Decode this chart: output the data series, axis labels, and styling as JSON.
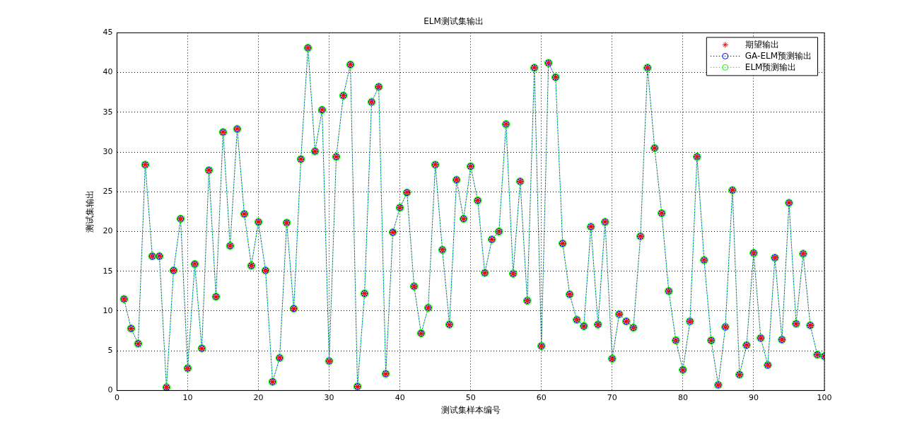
{
  "chart_data": {
    "type": "line",
    "title": "ELM测试集输出",
    "xlabel": "测试集样本编号",
    "ylabel": "测试集输出",
    "x": [
      1,
      2,
      3,
      4,
      5,
      6,
      7,
      8,
      9,
      10,
      11,
      12,
      13,
      14,
      15,
      16,
      17,
      18,
      19,
      20,
      21,
      22,
      23,
      24,
      25,
      26,
      27,
      28,
      29,
      30,
      31,
      32,
      33,
      34,
      35,
      36,
      37,
      38,
      39,
      40,
      41,
      42,
      43,
      44,
      45,
      46,
      47,
      48,
      49,
      50,
      51,
      52,
      53,
      54,
      55,
      56,
      57,
      58,
      59,
      60,
      61,
      62,
      63,
      64,
      65,
      66,
      67,
      68,
      69,
      70,
      71,
      72,
      73,
      74,
      75,
      76,
      77,
      78,
      79,
      80,
      81,
      82,
      83,
      84,
      85,
      86,
      87,
      88,
      89,
      90,
      91,
      92,
      93,
      94,
      95,
      96,
      97,
      98,
      99,
      100
    ],
    "xlim": [
      0,
      100
    ],
    "xticks": [
      0,
      10,
      20,
      30,
      40,
      50,
      60,
      70,
      80,
      90,
      100
    ],
    "ylim": [
      0,
      45
    ],
    "yticks": [
      0,
      5,
      10,
      15,
      20,
      25,
      30,
      35,
      40,
      45
    ],
    "grid": true,
    "legend": "top right",
    "series": [
      {
        "name": "期望输出",
        "type": "scatter",
        "marker": "cross",
        "color": "#ff0000",
        "values": [
          11.5,
          7.8,
          5.9,
          28.4,
          16.9,
          16.9,
          0.4,
          15.1,
          21.6,
          2.8,
          15.9,
          5.3,
          27.7,
          11.8,
          32.5,
          18.2,
          32.9,
          22.2,
          15.7,
          21.2,
          15.1,
          1.1,
          4.1,
          21.1,
          10.3,
          29.1,
          43.1,
          30.1,
          35.3,
          3.7,
          29.4,
          37.1,
          41.0,
          0.5,
          12.2,
          36.3,
          38.2,
          2.1,
          19.9,
          23.0,
          24.9,
          13.1,
          7.2,
          10.4,
          28.4,
          17.7,
          8.3,
          26.5,
          21.6,
          28.2,
          23.9,
          14.8,
          19.0,
          20.0,
          33.5,
          14.7,
          26.3,
          11.3,
          40.6,
          5.6,
          41.2,
          39.4,
          18.5,
          12.1,
          8.9,
          8.1,
          20.6,
          8.3,
          21.2,
          4.0,
          9.6,
          8.7,
          7.9,
          19.4,
          40.6,
          30.5,
          22.3,
          12.5,
          6.3,
          2.6,
          8.7,
          29.4,
          16.4,
          6.3,
          0.7,
          8.0,
          25.2,
          2.0,
          5.7,
          17.3,
          6.6,
          3.2,
          16.7,
          6.4,
          23.6,
          8.4,
          17.2,
          8.2,
          4.5,
          4.3
        ]
      },
      {
        "name": "GA-ELM预测输出",
        "type": "line",
        "marker": "circle",
        "line_style": "dotted",
        "color": "#0000ff",
        "values": [
          11.5,
          7.8,
          5.9,
          28.4,
          16.9,
          16.9,
          0.4,
          15.1,
          21.6,
          2.8,
          15.9,
          5.3,
          27.7,
          11.8,
          32.5,
          18.2,
          32.9,
          22.2,
          15.7,
          21.2,
          15.1,
          1.1,
          4.1,
          21.1,
          10.3,
          29.1,
          43.1,
          30.1,
          35.3,
          3.7,
          29.4,
          37.1,
          41.0,
          0.5,
          12.2,
          36.3,
          38.2,
          2.1,
          19.9,
          23.0,
          24.9,
          13.1,
          7.2,
          10.4,
          28.4,
          17.7,
          8.3,
          26.5,
          21.6,
          28.2,
          23.9,
          14.8,
          19.0,
          20.0,
          33.5,
          14.7,
          26.3,
          11.3,
          40.6,
          5.6,
          41.2,
          39.4,
          18.5,
          12.1,
          8.9,
          8.1,
          20.6,
          8.3,
          21.2,
          4.0,
          9.6,
          8.7,
          7.9,
          19.4,
          40.6,
          30.5,
          22.3,
          12.5,
          6.3,
          2.6,
          8.7,
          29.4,
          16.4,
          6.3,
          0.7,
          8.0,
          25.2,
          2.0,
          5.7,
          17.3,
          6.6,
          3.2,
          16.7,
          6.4,
          23.6,
          8.4,
          17.2,
          8.2,
          4.5,
          4.3
        ]
      },
      {
        "name": "ELM预测输出",
        "type": "line",
        "marker": "circle",
        "line_style": "dotted",
        "color": "#00ff00",
        "values": [
          11.5,
          7.8,
          5.9,
          28.4,
          16.9,
          16.9,
          0.4,
          15.1,
          21.6,
          2.8,
          15.9,
          5.3,
          27.7,
          11.8,
          32.5,
          18.2,
          32.9,
          22.2,
          15.7,
          21.2,
          15.1,
          1.1,
          4.1,
          21.1,
          10.3,
          29.1,
          43.1,
          30.1,
          35.3,
          3.7,
          29.4,
          37.1,
          41.0,
          0.5,
          12.2,
          36.3,
          38.2,
          2.1,
          19.9,
          23.0,
          24.9,
          13.1,
          7.2,
          10.4,
          28.4,
          17.7,
          8.3,
          26.5,
          21.6,
          28.2,
          23.9,
          14.8,
          19.0,
          20.0,
          33.5,
          14.7,
          26.3,
          11.3,
          40.6,
          5.6,
          41.2,
          39.4,
          18.5,
          12.1,
          8.9,
          8.1,
          20.6,
          8.3,
          21.2,
          4.0,
          9.6,
          8.7,
          7.9,
          19.4,
          40.6,
          30.5,
          22.3,
          12.5,
          6.3,
          2.6,
          8.7,
          29.4,
          16.4,
          6.3,
          0.7,
          8.0,
          25.2,
          2.0,
          5.7,
          17.3,
          6.6,
          3.2,
          16.7,
          6.4,
          23.6,
          8.4,
          17.2,
          8.2,
          4.5,
          4.3
        ]
      }
    ]
  }
}
